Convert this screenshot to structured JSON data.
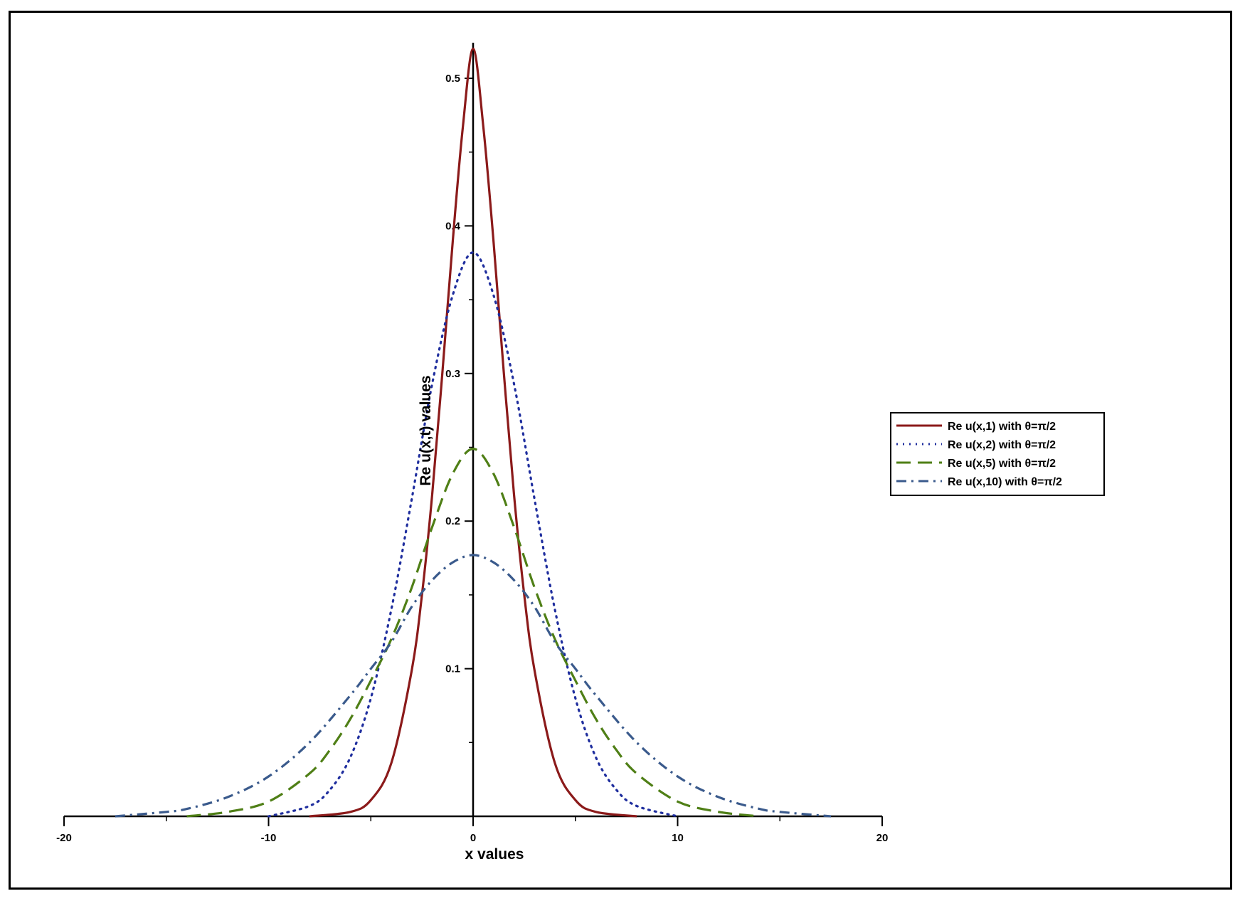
{
  "chart_data": {
    "type": "line",
    "title": "",
    "xlabel": "x values",
    "ylabel": "Re u(x,t) values",
    "xlim": [
      -20,
      20
    ],
    "ylim": [
      0,
      0.5
    ],
    "x_ticks": [
      -20,
      -10,
      0,
      10,
      20
    ],
    "y_ticks": [
      0.1,
      0.2,
      0.3,
      0.4,
      0.5
    ],
    "legend_position": "right",
    "grid": false,
    "series": [
      {
        "name": "Re u(x,1) with θ=π/2",
        "color": "#8B1A1A",
        "style": "solid",
        "x": [
          -8,
          -6,
          -5,
          -4,
          -3,
          -2.5,
          -2,
          -1.5,
          -1,
          -0.5,
          0,
          0.5,
          1,
          1.5,
          2,
          2.5,
          3,
          4,
          5,
          6,
          8
        ],
        "y": [
          0.0,
          0.003,
          0.011,
          0.036,
          0.099,
          0.15,
          0.218,
          0.301,
          0.389,
          0.467,
          0.52,
          0.467,
          0.389,
          0.301,
          0.218,
          0.15,
          0.099,
          0.036,
          0.011,
          0.003,
          0.0
        ]
      },
      {
        "name": "Re u(x,2) with θ=π/2",
        "color": "#1F2E9E",
        "style": "dotted",
        "x": [
          -10,
          -8,
          -7,
          -6,
          -5,
          -4,
          -3,
          -2,
          -1,
          0,
          1,
          2,
          3,
          4,
          5,
          6,
          7,
          8,
          10
        ],
        "y": [
          0.0,
          0.007,
          0.018,
          0.04,
          0.08,
          0.14,
          0.215,
          0.293,
          0.353,
          0.382,
          0.353,
          0.293,
          0.215,
          0.14,
          0.08,
          0.04,
          0.018,
          0.007,
          0.0
        ]
      },
      {
        "name": "Re u(x,5) with θ=π/2",
        "color": "#4F7F16",
        "style": "dashed",
        "x": [
          -14,
          -12,
          -10,
          -8,
          -7,
          -6,
          -5,
          -4,
          -3,
          -2,
          -1,
          0,
          1,
          2,
          3,
          4,
          5,
          6,
          7,
          8,
          10,
          12,
          14
        ],
        "y": [
          0.0,
          0.003,
          0.01,
          0.029,
          0.045,
          0.066,
          0.092,
          0.12,
          0.155,
          0.196,
          0.232,
          0.249,
          0.232,
          0.196,
          0.155,
          0.12,
          0.092,
          0.066,
          0.045,
          0.029,
          0.01,
          0.003,
          0.0
        ]
      },
      {
        "name": "Re u(x,10) with θ=π/2",
        "color": "#3A5A8C",
        "style": "dashdot",
        "x": [
          -17.5,
          -15,
          -14,
          -12,
          -10,
          -8,
          -6,
          -5,
          -4,
          -3,
          -2,
          -1,
          0,
          1,
          2,
          3,
          4,
          5,
          6,
          8,
          10,
          12,
          14,
          15,
          17.5
        ],
        "y": [
          0.0,
          0.003,
          0.005,
          0.013,
          0.027,
          0.05,
          0.082,
          0.1,
          0.118,
          0.142,
          0.16,
          0.172,
          0.177,
          0.172,
          0.16,
          0.142,
          0.118,
          0.1,
          0.082,
          0.05,
          0.027,
          0.013,
          0.005,
          0.003,
          0.0
        ]
      }
    ]
  }
}
